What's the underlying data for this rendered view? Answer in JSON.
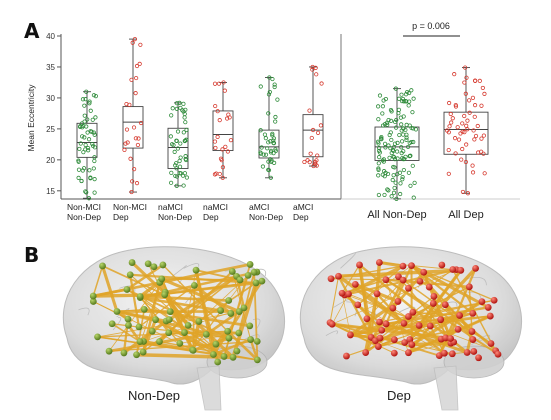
{
  "figure": {
    "panel_a_letter": "A",
    "panel_b_letter": "B",
    "panel_b_labels": [
      "Non-Dep",
      "Dep"
    ]
  },
  "colors": {
    "non_dep": "#2e8b3a",
    "dep": "#d63a2f",
    "box": "#444444",
    "edge": "#e0a428",
    "node_non_dep": "#6f9a2c",
    "node_dep": "#d42a24"
  },
  "chart_data": [
    {
      "type": "box",
      "title": "",
      "ylabel": "Mean Eccentricity",
      "ylim": [
        14,
        40
      ],
      "yticks": [
        15,
        20,
        25,
        30,
        35,
        40
      ],
      "groups": [
        {
          "label_lines": [
            "Non-MCI",
            "Non-Dep"
          ],
          "min": 13.8,
          "q1": 20.4,
          "median": 22.8,
          "q3": 25.9,
          "max": 31.0,
          "group": "Non-Dep"
        },
        {
          "label_lines": [
            "Non-MCI",
            "Dep"
          ],
          "min": 14.8,
          "q1": 21.9,
          "median": 26.1,
          "q3": 28.6,
          "max": 39.5,
          "group": "Dep"
        },
        {
          "label_lines": [
            "naMCI",
            "Non-Dep"
          ],
          "min": 15.8,
          "q1": 18.6,
          "median": 22.0,
          "q3": 25.1,
          "max": 29.2,
          "group": "Non-Dep"
        },
        {
          "label_lines": [
            "naMCI",
            "Dep"
          ],
          "min": 17.1,
          "q1": 21.5,
          "median": 24.1,
          "q3": 27.9,
          "max": 32.5,
          "group": "Dep"
        },
        {
          "label_lines": [
            "aMCI",
            "Non-Dep"
          ],
          "min": 17.1,
          "q1": 20.3,
          "median": 22.1,
          "q3": 24.8,
          "max": 33.3,
          "group": "Non-Dep"
        },
        {
          "label_lines": [
            "aMCI",
            "Dep"
          ],
          "min": 19.0,
          "q1": 20.5,
          "median": 24.8,
          "q3": 27.3,
          "max": 35.0,
          "group": "Dep"
        }
      ]
    },
    {
      "type": "box",
      "title": "",
      "ylabel": "",
      "ylim": [
        14,
        40
      ],
      "groups": [
        {
          "label": "All Non-Dep",
          "min": 13.7,
          "q1": 19.9,
          "median": 22.1,
          "q3": 25.3,
          "max": 31.5,
          "group": "Non-Dep"
        },
        {
          "label": "All Dep",
          "min": 14.6,
          "q1": 20.9,
          "median": 24.9,
          "q3": 27.7,
          "max": 34.9,
          "group": "Dep"
        }
      ],
      "annotation": "p = 0.006"
    }
  ]
}
